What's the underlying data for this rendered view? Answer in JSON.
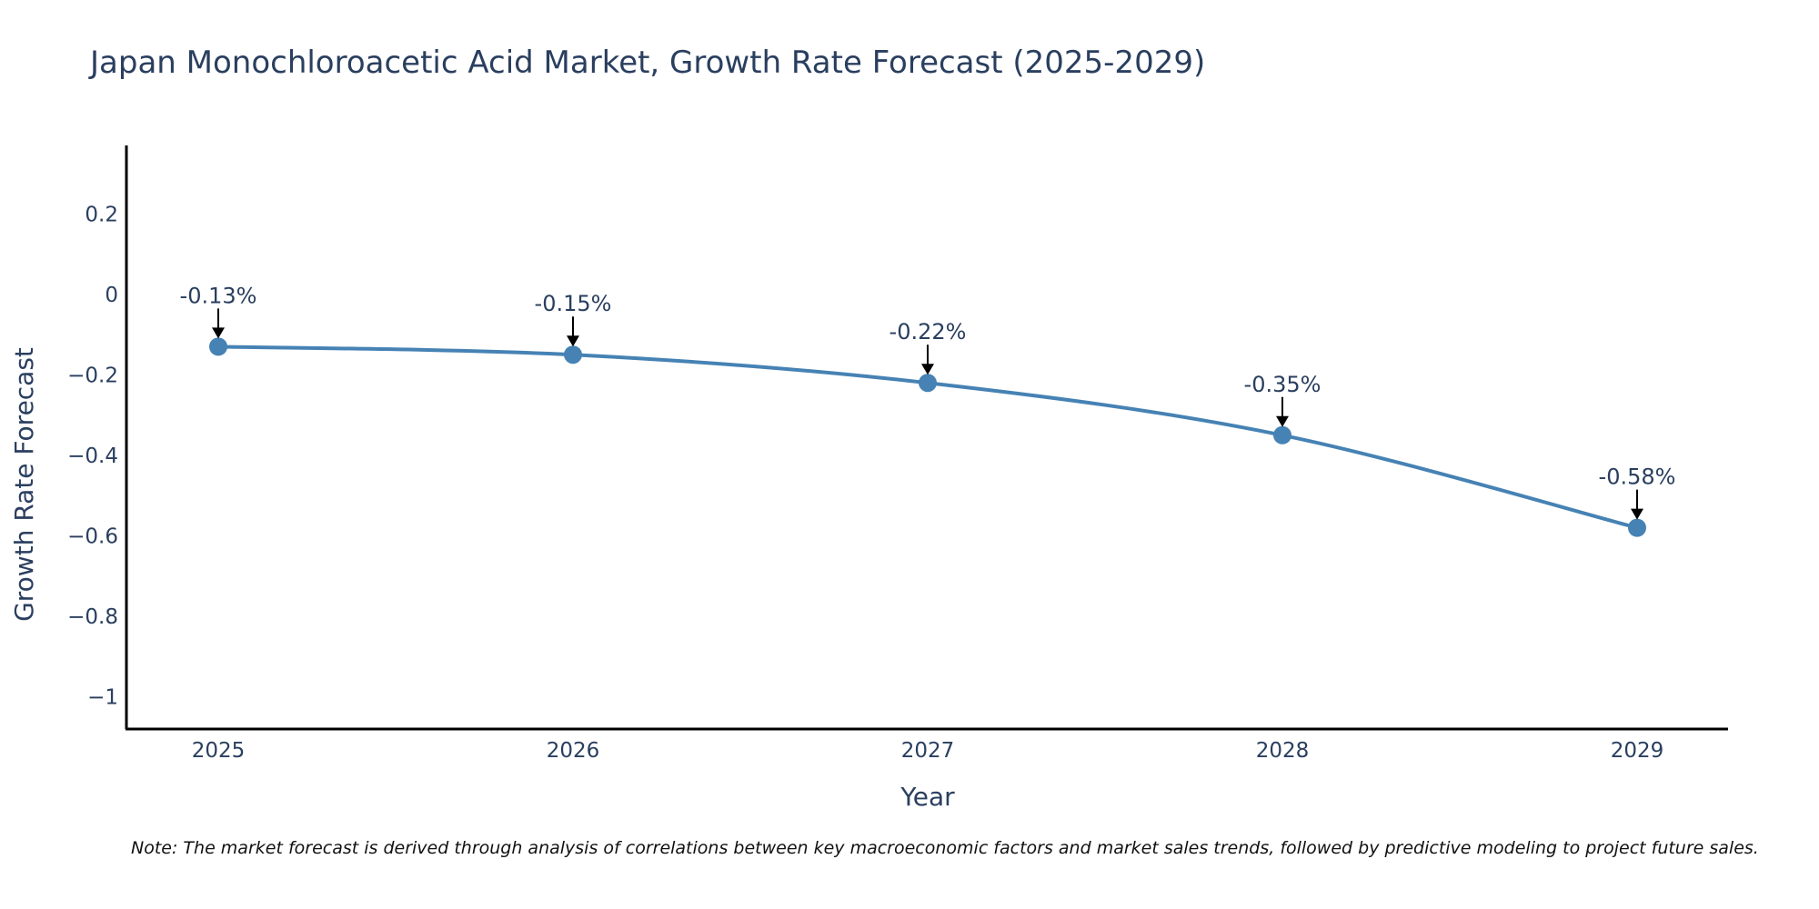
{
  "chart_data": {
    "type": "line",
    "title": "Japan Monochloroacetic Acid Market, Growth Rate Forecast (2025-2029)",
    "xlabel": "Year",
    "ylabel": "Growth Rate Forecast",
    "categories": [
      "2025",
      "2026",
      "2027",
      "2028",
      "2029"
    ],
    "series": [
      {
        "name": "Growth Rate Forecast",
        "values": [
          -0.13,
          -0.15,
          -0.22,
          -0.35,
          -0.58
        ],
        "labels": [
          "-0.13%",
          "-0.15%",
          "-0.22%",
          "-0.35%",
          "-0.58%"
        ]
      }
    ],
    "ylim": [
      -1.08,
      0.37
    ],
    "yticks": [
      0.2,
      0,
      -0.2,
      -0.4,
      -0.6,
      -0.8,
      -1
    ],
    "ytick_labels": [
      "0.2",
      "0",
      "−0.2",
      "−0.4",
      "−0.6",
      "−0.8",
      "−1"
    ],
    "grid": false,
    "line_color": "#4682b4",
    "note": "Note: The market forecast is derived through analysis of correlations between key macroeconomic factors and market sales trends, followed by predictive modeling to project future sales."
  }
}
